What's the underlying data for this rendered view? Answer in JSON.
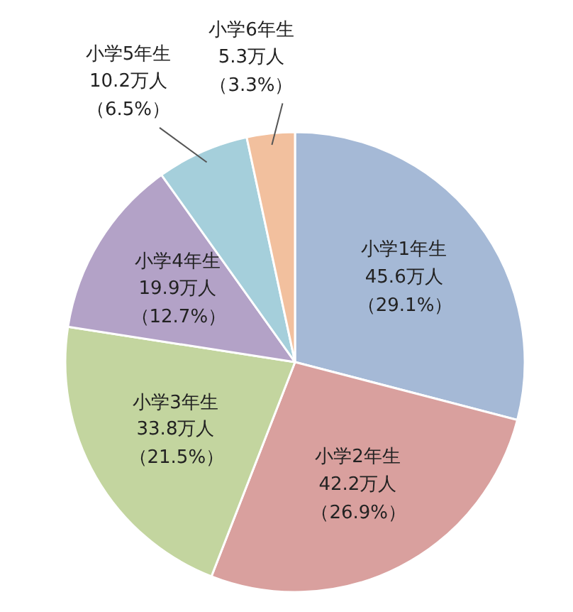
{
  "chart_data": {
    "type": "pie",
    "categories": [
      "小学1年生",
      "小学2年生",
      "小学3年生",
      "小学4年生",
      "小学5年生",
      "小学6年生"
    ],
    "values": [
      45.6,
      42.2,
      33.8,
      19.9,
      10.2,
      5.3
    ],
    "value_labels": [
      "45.6万人（29.1%）",
      "42.2万人（26.9%）",
      "33.8万人（21.5%）",
      "19.9万人（12.7%）",
      "10.2万人（6.5%）",
      "5.3万人（3.3%）"
    ],
    "colors": [
      "#a5b9d6",
      "#d9a09e",
      "#c3d59f",
      "#b3a2c7",
      "#a5cfdb",
      "#f2c09e"
    ],
    "legend": false
  }
}
